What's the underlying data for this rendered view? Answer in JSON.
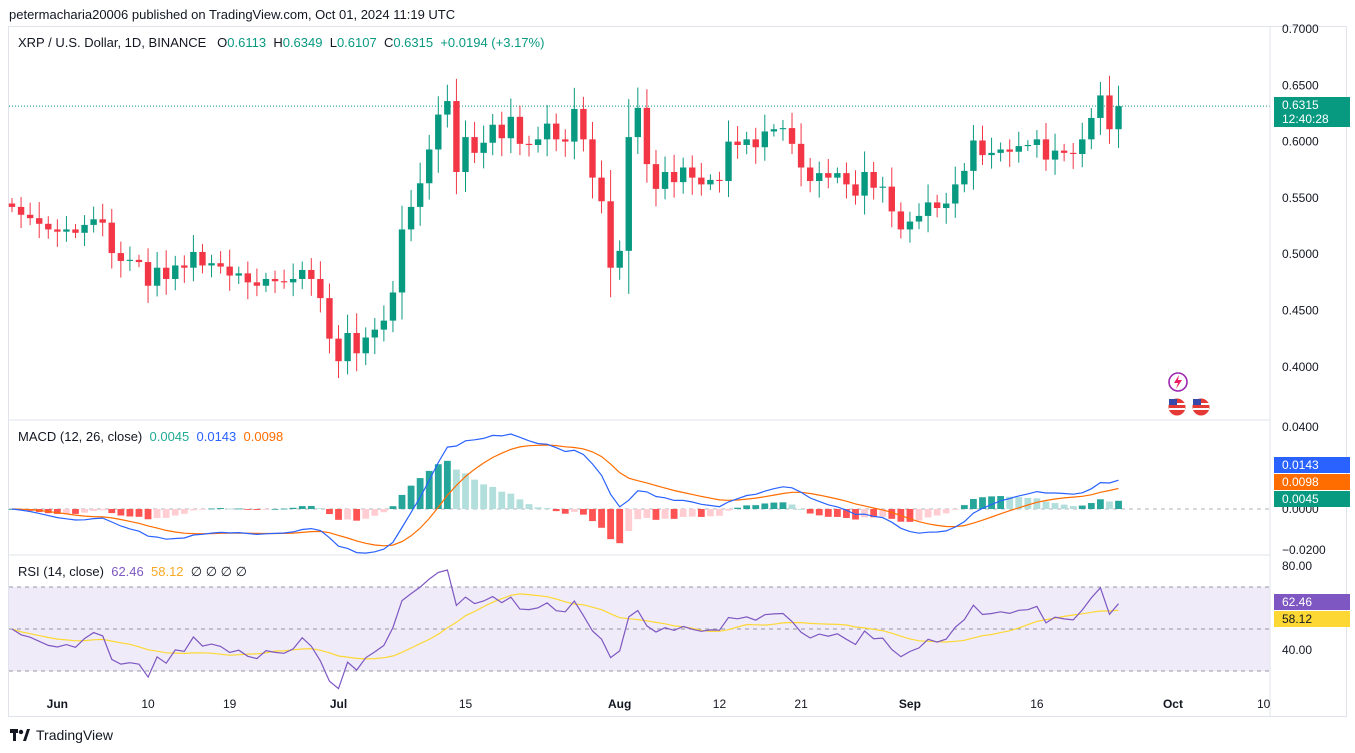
{
  "header": {
    "published": "petermacharia20006 published on TradingView.com, Oct 01, 2024 11:19 UTC"
  },
  "legend": {
    "symbol": "XRP / U.S. Dollar, 1D, BINANCE",
    "o_label": "O",
    "o": "0.6113",
    "h_label": "H",
    "h": "0.6349",
    "l_label": "L",
    "l": "0.6107",
    "c_label": "C",
    "c": "0.6315",
    "change": "+0.0194 (+3.17%)"
  },
  "price_tag": {
    "price": "0.6315",
    "countdown": "12:40:28"
  },
  "macd_legend": {
    "title": "MACD (12, 26, close)",
    "hist": "0.0045",
    "macd": "0.0143",
    "signal": "0.0098"
  },
  "rsi_legend": {
    "title": "RSI (14, close)",
    "rsi": "62.46",
    "ma": "58.12",
    "extras": "∅ ∅ ∅ ∅"
  },
  "footer": {
    "brand": "TradingView"
  },
  "colors": {
    "up": "#089981",
    "down": "#f23645",
    "macd": "#2962ff",
    "signal": "#ff6d00",
    "rsi": "#7e57c2",
    "rsi_ma": "#fdd835"
  },
  "icons": [
    "lightning-icon",
    "us-flag-icon",
    "us-flag-icon"
  ],
  "chart_data": [
    {
      "type": "candlestick",
      "title": "XRP / U.S. Dollar, 1D, BINANCE",
      "ylim": [
        0.37,
        0.7
      ],
      "yticks": [
        "0.7000",
        "0.6500",
        "0.6000",
        "0.5500",
        "0.5000",
        "0.4500",
        "0.4000"
      ],
      "xticks": [
        {
          "label": "Jun",
          "bold": true
        },
        {
          "label": "10",
          "bold": false
        },
        {
          "label": "19",
          "bold": false
        },
        {
          "label": "Jul",
          "bold": true
        },
        {
          "label": "15",
          "bold": false
        },
        {
          "label": "Aug",
          "bold": true
        },
        {
          "label": "12",
          "bold": false
        },
        {
          "label": "21",
          "bold": false
        },
        {
          "label": "Sep",
          "bold": true
        },
        {
          "label": "16",
          "bold": false
        },
        {
          "label": "Oct",
          "bold": true
        },
        {
          "label": "10",
          "bold": false
        }
      ],
      "last_price": 0.6315,
      "close": [
        0.542,
        0.535,
        0.532,
        0.527,
        0.522,
        0.52,
        0.522,
        0.519,
        0.526,
        0.531,
        0.528,
        0.501,
        0.494,
        0.495,
        0.493,
        0.472,
        0.488,
        0.478,
        0.49,
        0.488,
        0.502,
        0.49,
        0.492,
        0.489,
        0.481,
        0.483,
        0.475,
        0.472,
        0.478,
        0.476,
        0.475,
        0.478,
        0.486,
        0.478,
        0.461,
        0.425,
        0.405,
        0.43,
        0.412,
        0.426,
        0.433,
        0.441,
        0.466,
        0.522,
        0.542,
        0.563,
        0.593,
        0.624,
        0.636,
        0.573,
        0.604,
        0.59,
        0.599,
        0.615,
        0.603,
        0.622,
        0.598,
        0.597,
        0.602,
        0.616,
        0.602,
        0.6,
        0.629,
        0.602,
        0.568,
        0.547,
        0.488,
        0.503,
        0.604,
        0.63,
        0.58,
        0.558,
        0.573,
        0.564,
        0.577,
        0.568,
        0.562,
        0.566,
        0.565,
        0.6,
        0.597,
        0.602,
        0.595,
        0.609,
        0.611,
        0.612,
        0.598,
        0.577,
        0.565,
        0.572,
        0.568,
        0.572,
        0.562,
        0.552,
        0.573,
        0.559,
        0.56,
        0.538,
        0.522,
        0.529,
        0.534,
        0.546,
        0.541,
        0.545,
        0.562,
        0.574,
        0.601,
        0.588,
        0.59,
        0.593,
        0.591,
        0.596,
        0.597,
        0.602,
        0.584,
        0.592,
        0.59,
        0.589,
        0.602,
        0.621,
        0.641,
        0.611,
        0.6315
      ],
      "volume_color_note": "up candles green, down candles red"
    },
    {
      "type": "line+histogram",
      "title": "MACD (12, 26, close)",
      "ylim": [
        -0.024,
        0.042
      ],
      "yticks": [
        "0.0400",
        "0.0200",
        "0.0000",
        "−0.0200"
      ],
      "series": [
        {
          "name": "Histogram",
          "last": 0.0045
        },
        {
          "name": "MACD",
          "last": 0.0143
        },
        {
          "name": "Signal",
          "last": 0.0098
        }
      ]
    },
    {
      "type": "line",
      "title": "RSI (14, close)",
      "ylim": [
        27,
        83
      ],
      "yticks": [
        "80.00",
        "40.00"
      ],
      "bands": [
        70,
        50,
        30
      ],
      "series": [
        {
          "name": "RSI",
          "last": 62.46
        },
        {
          "name": "RSI MA",
          "last": 58.12
        }
      ]
    }
  ]
}
